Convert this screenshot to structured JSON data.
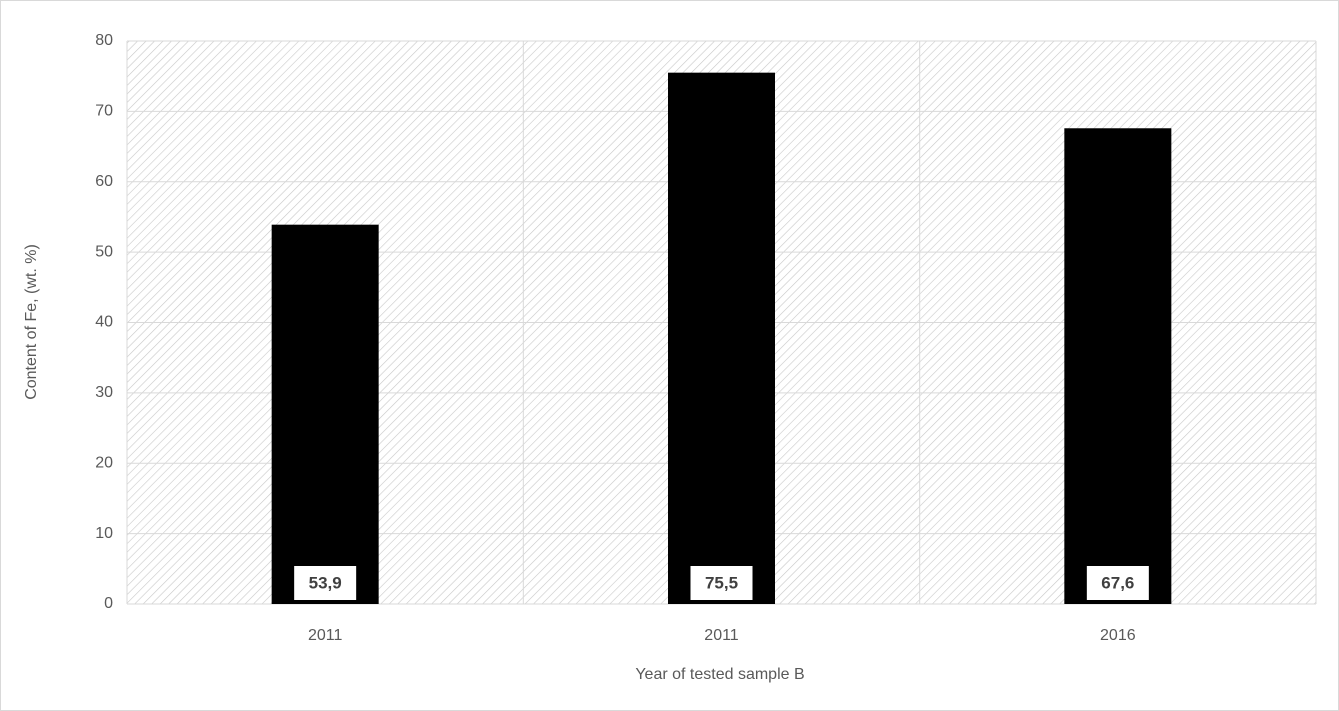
{
  "chart_data": {
    "type": "bar",
    "categories": [
      "2011",
      "2011",
      "2016"
    ],
    "values": [
      53.9,
      75.5,
      67.6
    ],
    "value_labels": [
      "53,9",
      "75,5",
      "67,6"
    ],
    "color": "#000000",
    "ylim": [
      0,
      80
    ],
    "yticks": [
      0,
      10,
      20,
      30,
      40,
      50,
      60,
      70,
      80
    ],
    "grid": true,
    "xlabel": "Year of tested sample B",
    "ylabel": "Content of  Fe, (wt. %)"
  }
}
